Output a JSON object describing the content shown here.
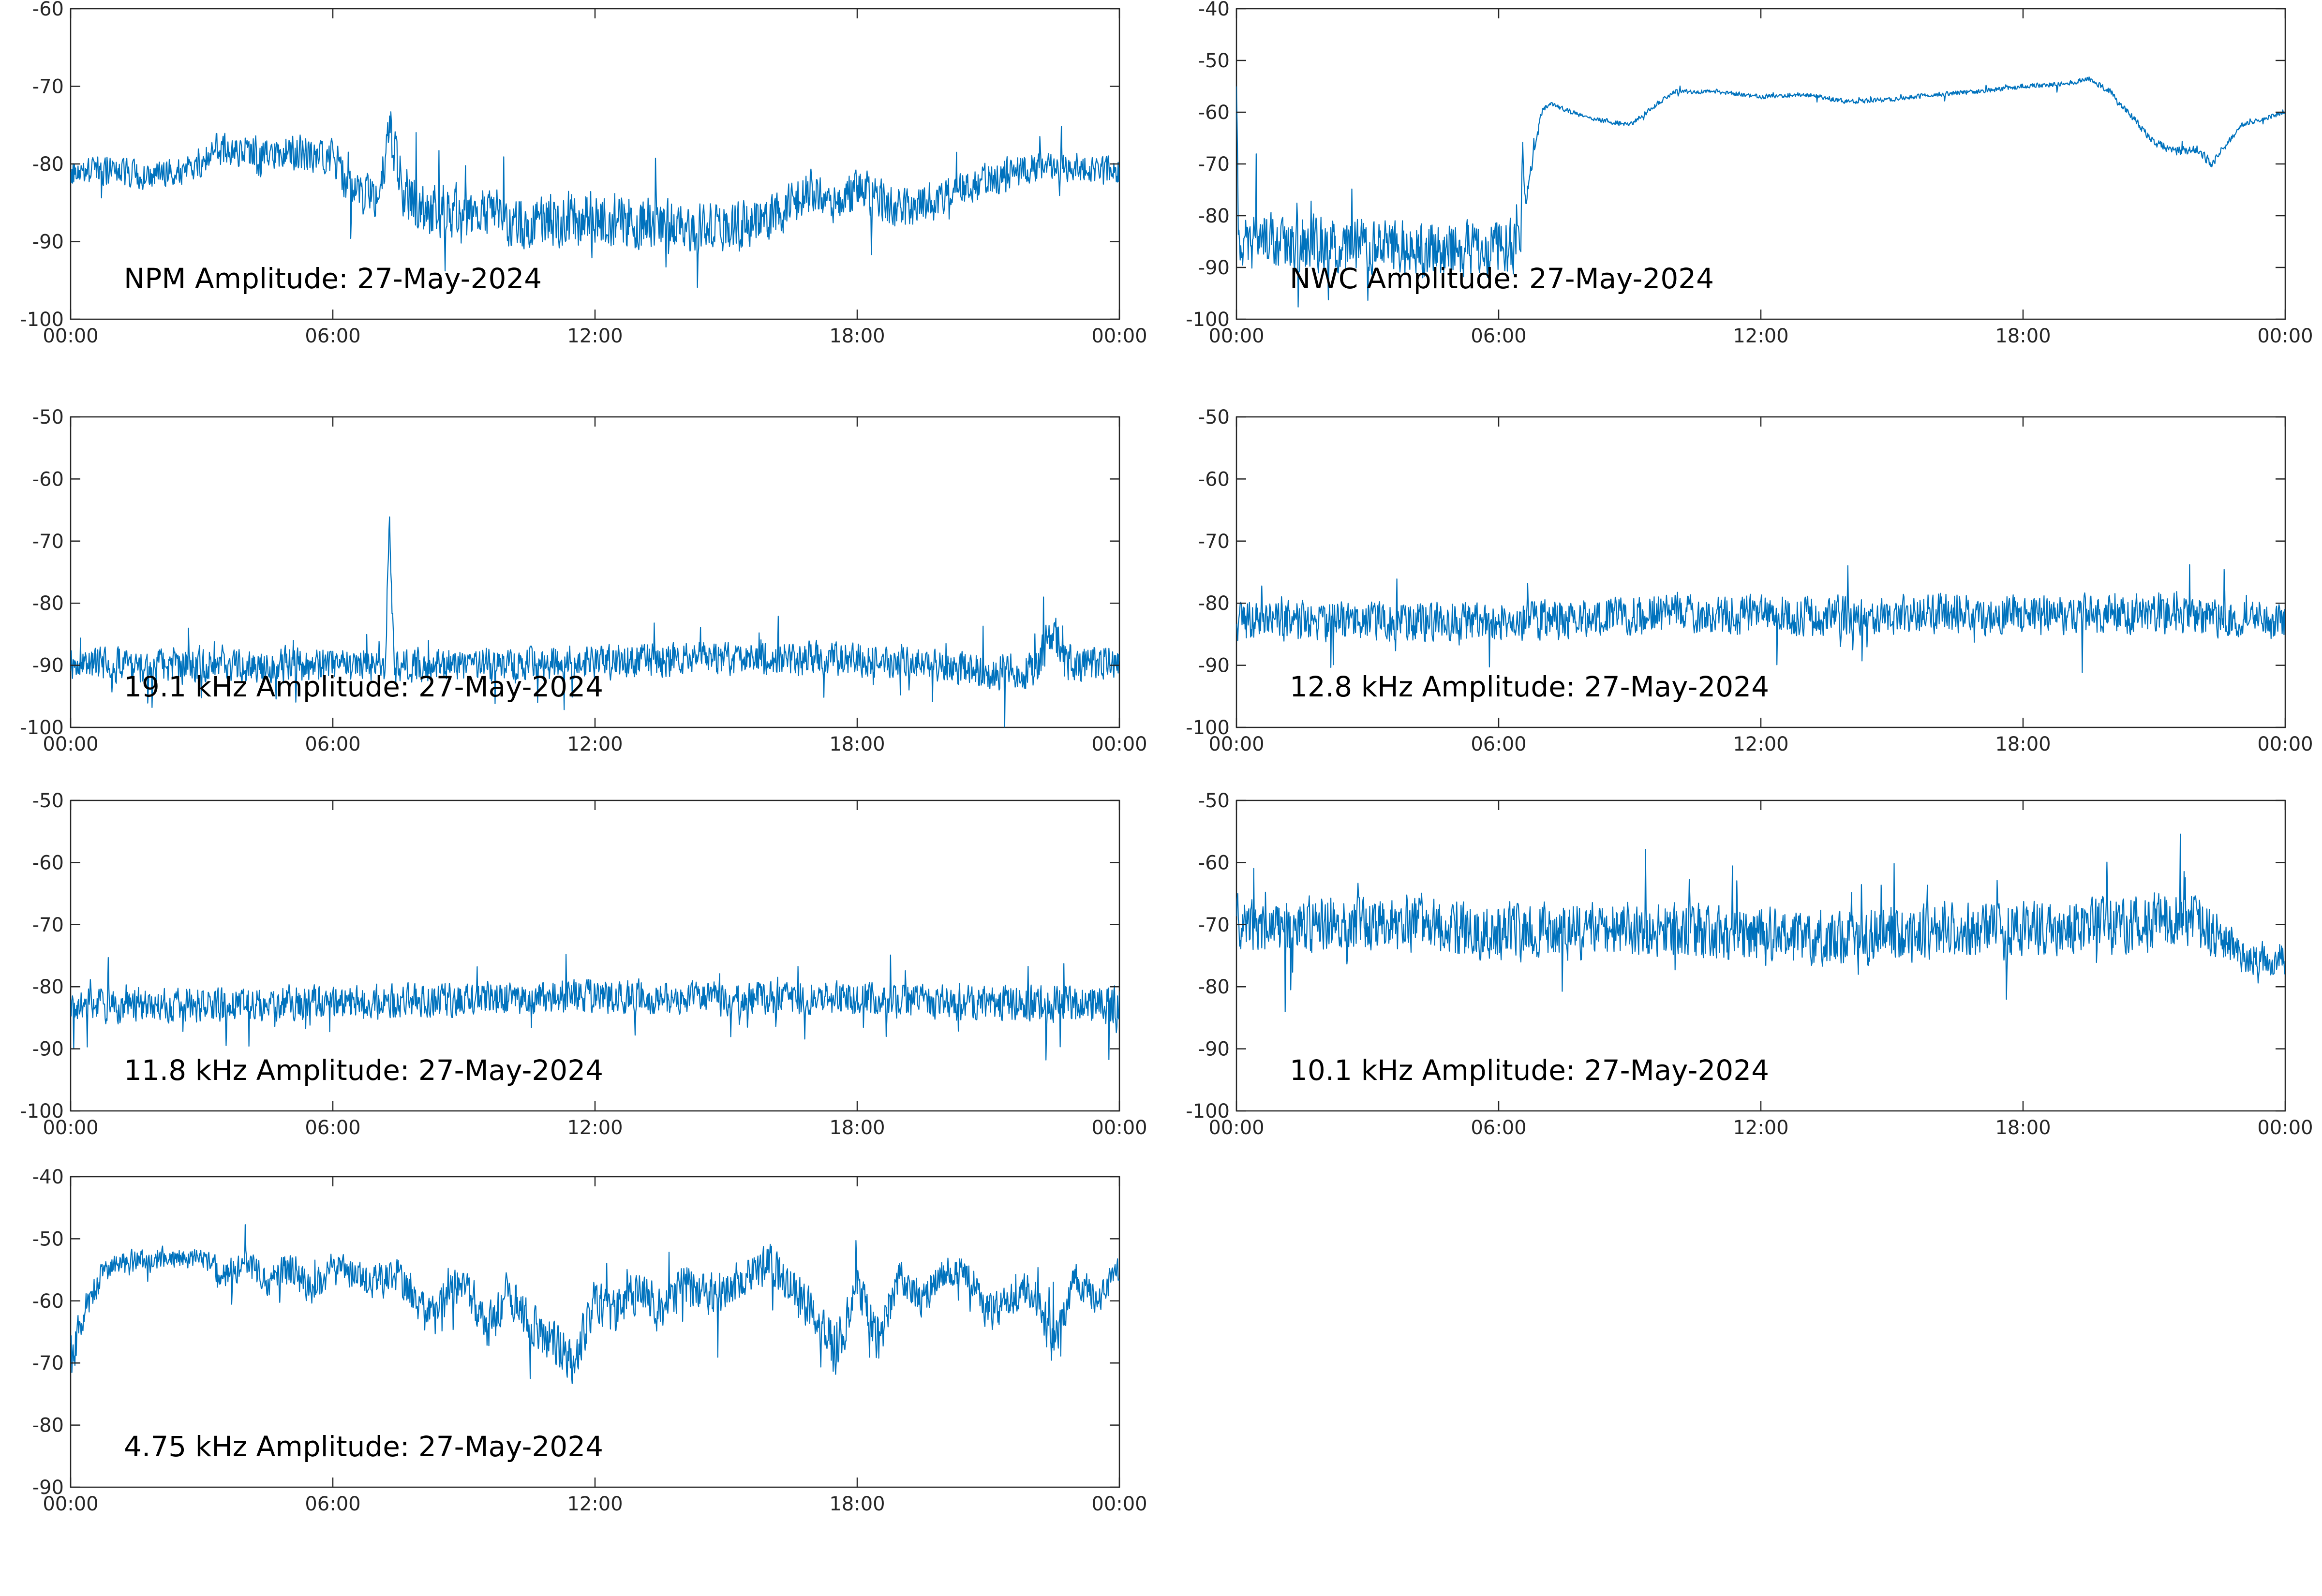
{
  "chart_data": [
    {
      "type": "line",
      "title": "NPM Amplitude: 27-May-2024",
      "xlabel": "",
      "ylabel": "",
      "xlim": [
        0,
        24
      ],
      "ylim": [
        -100,
        -60
      ],
      "xticks": [
        "00:00",
        "06:00",
        "12:00",
        "18:00",
        "00:00"
      ],
      "yticks": [
        "-60",
        "-70",
        "-80",
        "-90",
        "-100"
      ],
      "grid": false,
      "series": [
        {
          "x": [
            0,
            1,
            2,
            3,
            3.3,
            4,
            5,
            6,
            6.5,
            7,
            7.3,
            7.6,
            8,
            9,
            10,
            11,
            12,
            13,
            14,
            15,
            16,
            17,
            17.5,
            18,
            19,
            20,
            21,
            22,
            23,
            24
          ],
          "center": [
            -81,
            -81,
            -81.5,
            -80,
            -78,
            -78.5,
            -78.5,
            -79,
            -84,
            -84,
            -76,
            -83,
            -85.5,
            -86,
            -87.5,
            -87,
            -87,
            -87.5,
            -88,
            -88.5,
            -87,
            -83.5,
            -85.5,
            -83,
            -86,
            -84,
            -82,
            -80.5,
            -80.5,
            -81
          ],
          "spread": [
            2,
            2,
            2,
            2,
            2.5,
            2.5,
            2.5,
            2.5,
            3,
            3,
            4,
            4,
            4,
            4,
            4,
            4,
            4,
            4,
            3.5,
            3.5,
            3.5,
            3,
            3,
            3,
            3,
            2.5,
            2.5,
            2,
            2,
            2
          ]
        }
      ]
    },
    {
      "type": "line",
      "title": "NWC Amplitude: 27-May-2024",
      "xlabel": "",
      "ylabel": "",
      "xlim": [
        0,
        24
      ],
      "ylim": [
        -100,
        -40
      ],
      "xticks": [
        "00:00",
        "06:00",
        "12:00",
        "18:00",
        "00:00"
      ],
      "yticks": [
        "-40",
        "-50",
        "-60",
        "-70",
        "-80",
        "-90",
        "-100"
      ],
      "grid": false,
      "series": [
        {
          "x": [
            0,
            0.05,
            0.2,
            1,
            2,
            3,
            4,
            5,
            6,
            6.5,
            6.55,
            6.6,
            6.8,
            7,
            7.2,
            8,
            9,
            10,
            11,
            12,
            13,
            14,
            15,
            16,
            17,
            18,
            19,
            19.5,
            20,
            20.5,
            21,
            21.5,
            22,
            22.3,
            23,
            24
          ],
          "center": [
            -55,
            -85,
            -85,
            -85,
            -85.5,
            -86,
            -86,
            -86.5,
            -86,
            -86,
            -65,
            -78,
            -68,
            -59.5,
            -58.5,
            -61,
            -62.5,
            -56,
            -56,
            -57,
            -56.5,
            -58,
            -57.5,
            -56.5,
            -56,
            -55,
            -54.5,
            -53.5,
            -56,
            -61,
            -66,
            -67.5,
            -67,
            -70,
            -62.5,
            -60
          ],
          "spread": [
            0.5,
            6,
            6,
            6,
            6,
            6,
            6,
            6,
            6,
            6,
            1,
            2,
            1.5,
            0.6,
            0.5,
            0.5,
            0.5,
            0.5,
            0.5,
            0.5,
            0.5,
            0.5,
            0.5,
            0.5,
            0.5,
            0.5,
            0.5,
            0.5,
            0.6,
            0.8,
            1,
            1,
            1,
            1,
            0.5,
            0.5
          ]
        }
      ]
    },
    {
      "type": "line",
      "title": "19.1 kHz Amplitude: 27-May-2024",
      "xlabel": "",
      "ylabel": "",
      "xlim": [
        0,
        24
      ],
      "ylim": [
        -100,
        -50
      ],
      "xticks": [
        "00:00",
        "06:00",
        "12:00",
        "18:00",
        "00:00"
      ],
      "yticks": [
        "-50",
        "-60",
        "-70",
        "-80",
        "-90",
        "-100"
      ],
      "grid": false,
      "series": [
        {
          "x": [
            0,
            2,
            4,
            6,
            7,
            7.2,
            7.3,
            7.4,
            8,
            10,
            12,
            14,
            16,
            18,
            20,
            21,
            22,
            22.5,
            22.7,
            23,
            24
          ],
          "center": [
            -90,
            -90,
            -90,
            -90,
            -90,
            -90,
            -66,
            -90,
            -90,
            -90,
            -89.5,
            -89,
            -89,
            -89,
            -90,
            -91,
            -91,
            -84,
            -89,
            -90,
            -89
          ],
          "spread": [
            3,
            3,
            3,
            3,
            3,
            3,
            3,
            3,
            3,
            3,
            3,
            3,
            3,
            3,
            3,
            3.5,
            3.5,
            4,
            4,
            3.5,
            3
          ]
        }
      ]
    },
    {
      "type": "line",
      "title": "12.8 kHz Amplitude: 27-May-2024",
      "xlabel": "",
      "ylabel": "",
      "xlim": [
        0,
        24
      ],
      "ylim": [
        -100,
        -50
      ],
      "xticks": [
        "00:00",
        "06:00",
        "12:00",
        "18:00",
        "00:00"
      ],
      "yticks": [
        "-50",
        "-60",
        "-70",
        "-80",
        "-90",
        "-100"
      ],
      "grid": false,
      "series": [
        {
          "x": [
            0,
            3,
            6,
            9,
            10,
            12,
            15,
            16,
            18,
            21,
            24
          ],
          "center": [
            -83,
            -83,
            -83,
            -82,
            -81.5,
            -82,
            -82,
            -81.5,
            -82,
            -81.5,
            -83
          ],
          "spread": [
            3.5,
            3.5,
            3.5,
            3.5,
            3.5,
            3.5,
            3.5,
            3.5,
            3.5,
            3.5,
            3.5
          ]
        }
      ]
    },
    {
      "type": "line",
      "title": "11.8 kHz Amplitude: 27-May-2024",
      "xlabel": "",
      "ylabel": "",
      "xlim": [
        0,
        24
      ],
      "ylim": [
        -100,
        -50
      ],
      "xticks": [
        "00:00",
        "06:00",
        "12:00",
        "18:00",
        "00:00"
      ],
      "yticks": [
        "-50",
        "-60",
        "-70",
        "-80",
        "-90",
        "-100"
      ],
      "grid": false,
      "series": [
        {
          "x": [
            0,
            3,
            6,
            9,
            12,
            15,
            18,
            21,
            24
          ],
          "center": [
            -83,
            -83,
            -82.5,
            -82,
            -81.5,
            -82,
            -82,
            -82.5,
            -83
          ],
          "spread": [
            3,
            3,
            3,
            3,
            3,
            3,
            3,
            3,
            3.5
          ]
        }
      ]
    },
    {
      "type": "line",
      "title": "10.1 kHz Amplitude: 27-May-2024",
      "xlabel": "",
      "ylabel": "",
      "xlim": [
        0,
        24
      ],
      "ylim": [
        -100,
        -50
      ],
      "xticks": [
        "00:00",
        "06:00",
        "12:00",
        "18:00",
        "00:00"
      ],
      "yticks": [
        "-50",
        "-60",
        "-70",
        "-80",
        "-90",
        "-100"
      ],
      "grid": false,
      "series": [
        {
          "x": [
            0,
            2,
            4,
            6,
            8,
            10,
            12,
            14,
            16,
            18,
            20,
            22,
            23,
            24
          ],
          "center": [
            -70,
            -70,
            -70,
            -71,
            -71,
            -71,
            -72,
            -72,
            -71,
            -71,
            -70,
            -69,
            -75,
            -76
          ],
          "spread": [
            5,
            5,
            5,
            5,
            5,
            5,
            5,
            5,
            5,
            5,
            5,
            5,
            3,
            3
          ]
        }
      ]
    },
    {
      "type": "line",
      "title": "4.75 kHz Amplitude: 27-May-2024",
      "xlabel": "",
      "ylabel": "",
      "xlim": [
        0,
        24
      ],
      "ylim": [
        -90,
        -40
      ],
      "xticks": [
        "00:00",
        "06:00",
        "12:00",
        "18:00",
        "00:00"
      ],
      "yticks": [
        "-40",
        "-50",
        "-60",
        "-70",
        "-80",
        "-90"
      ],
      "grid": false,
      "series": [
        {
          "x": [
            0,
            0.3,
            0.7,
            1,
            2,
            3,
            3.5,
            4,
            4.5,
            5,
            5.5,
            6,
            7,
            7.5,
            8,
            8.5,
            9,
            9.5,
            10,
            10.5,
            11,
            11.5,
            12,
            12.5,
            13,
            13.5,
            14,
            14.5,
            15,
            15.5,
            16,
            16.5,
            17,
            17.5,
            18,
            18.5,
            19,
            19.5,
            20,
            20.5,
            21,
            21.5,
            22,
            22.5,
            23,
            23.5,
            24
          ],
          "center": [
            -70,
            -62,
            -56,
            -54,
            -53,
            -53,
            -56,
            -54,
            -57,
            -55,
            -58,
            -55,
            -57,
            -56,
            -62,
            -60,
            -56,
            -65,
            -59,
            -64,
            -66,
            -70,
            -60,
            -62,
            -58,
            -62,
            -57,
            -59,
            -58,
            -56,
            -54,
            -58,
            -62,
            -68,
            -58,
            -66,
            -56,
            -60,
            -55,
            -56,
            -62,
            -60,
            -58,
            -67,
            -56,
            -60,
            -55
          ],
          "spread": [
            4,
            3,
            2,
            2,
            2,
            2,
            2.5,
            2.5,
            3,
            3,
            3,
            3,
            3,
            3,
            3.5,
            3.5,
            3.5,
            4,
            4,
            4,
            4,
            4,
            4,
            4,
            4,
            4,
            4,
            4,
            3.5,
            3.5,
            3.5,
            4,
            4,
            5,
            4,
            4.5,
            3,
            3,
            3,
            3,
            3.5,
            3.5,
            3.5,
            4,
            3,
            3,
            2.5
          ]
        }
      ]
    }
  ]
}
